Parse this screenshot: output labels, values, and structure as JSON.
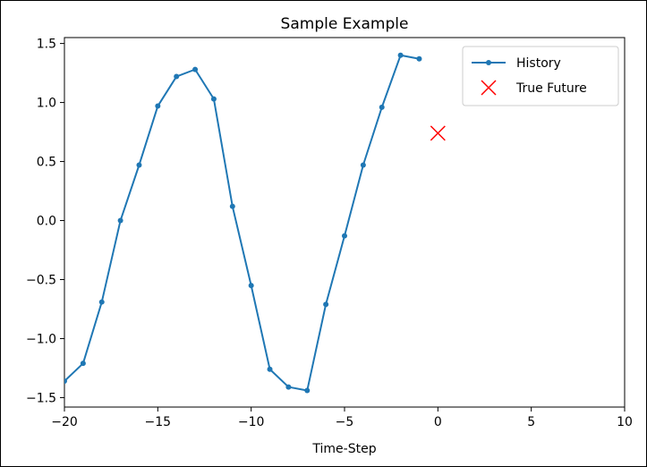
{
  "chart_data": {
    "type": "line",
    "title": "Sample Example",
    "xlabel": "Time-Step",
    "ylabel": "",
    "xlim": [
      -20,
      10
    ],
    "ylim": [
      -1.58,
      1.55
    ],
    "grid": false,
    "legend_position": "top-right",
    "x_ticks": [
      -20,
      -15,
      -10,
      -5,
      0,
      5,
      10
    ],
    "x_tick_labels": [
      "−20",
      "−15",
      "−10",
      "−5",
      "0",
      "5",
      "10"
    ],
    "y_ticks": [
      1.5,
      1.0,
      0.5,
      0.0,
      -0.5,
      -1.0,
      -1.5
    ],
    "y_tick_labels": [
      "1.5",
      "1.0",
      "0.5",
      "0.0",
      "−0.5",
      "−1.0",
      "−1.5"
    ],
    "series": [
      {
        "name": "History",
        "color": "#1f77b4",
        "marker": "dot",
        "x": [
          -20,
          -19,
          -18,
          -17,
          -16,
          -15,
          -14,
          -13,
          -12,
          -11,
          -10,
          -9,
          -8,
          -7,
          -6,
          -5,
          -4,
          -3,
          -2,
          -1
        ],
        "y": [
          -1.36,
          -1.21,
          -0.69,
          0.0,
          0.47,
          0.97,
          1.22,
          1.28,
          1.03,
          0.12,
          -0.55,
          -1.26,
          -1.41,
          -1.44,
          -0.71,
          -0.13,
          0.47,
          0.96,
          1.4,
          1.37
        ]
      },
      {
        "name": "True Future",
        "color": "#ff0000",
        "marker": "x",
        "x": [
          0
        ],
        "y": [
          0.74
        ]
      }
    ]
  }
}
